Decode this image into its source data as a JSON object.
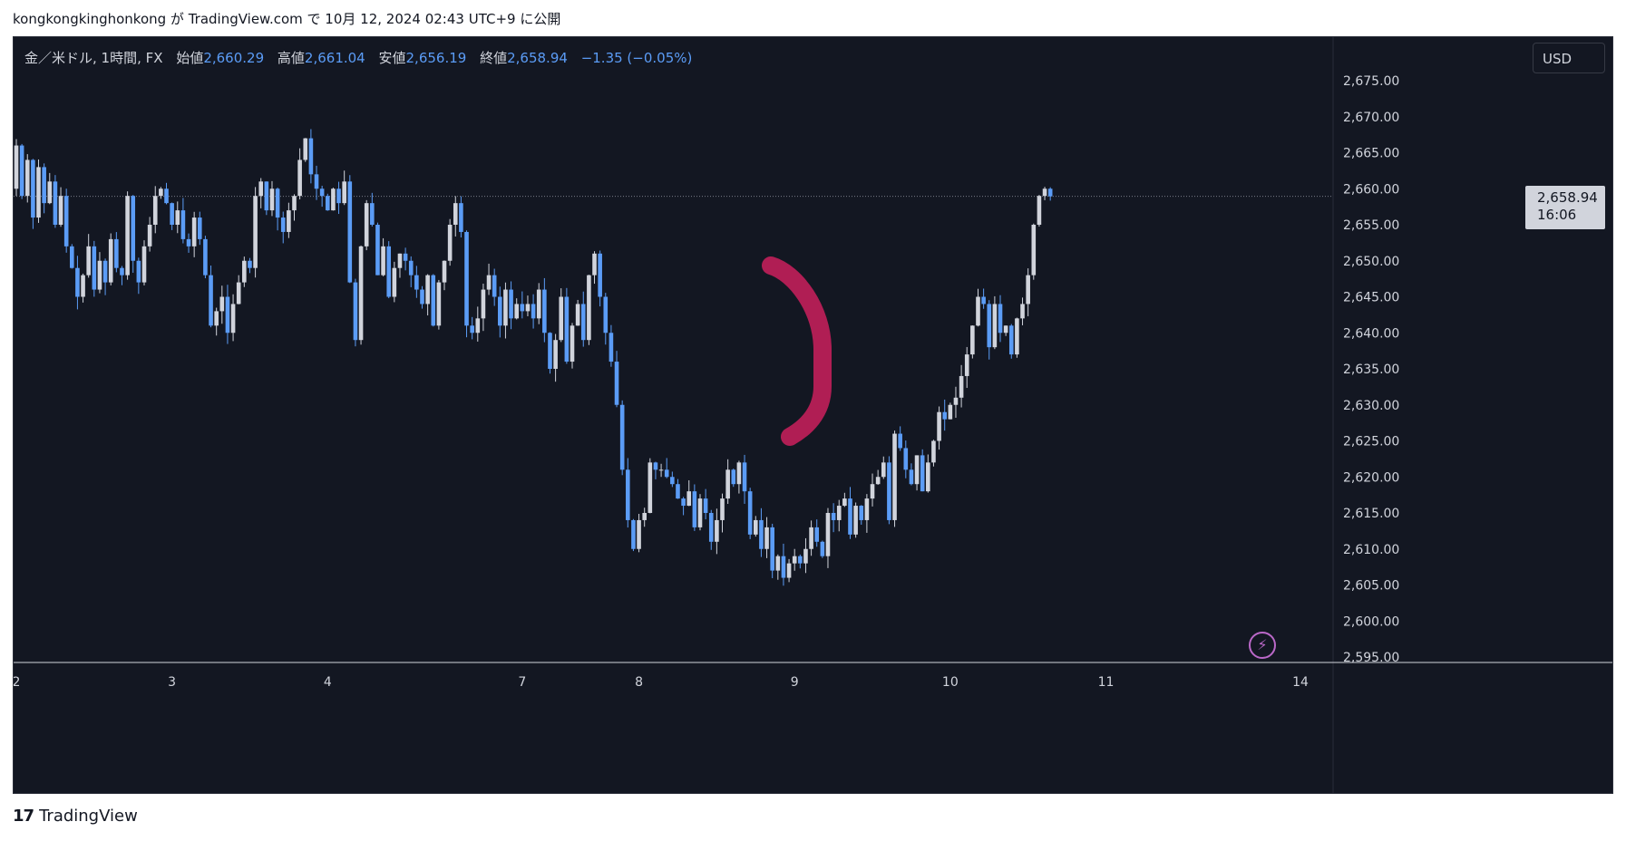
{
  "attribution": {
    "author": "kongkongkinghonkong",
    "middle": " が TradingView.com で ",
    "date": "10月 12, 2024 02:43 UTC+9",
    "suffix": " に公開"
  },
  "legend": {
    "symbol": "金／米ドル, 1時間, FX",
    "open_label": "始値",
    "open": "2,660.29",
    "high_label": "高値",
    "high": "2,661.04",
    "low_label": "安値",
    "low": "2,656.19",
    "close_label": "終値",
    "close": "2,658.94",
    "change": "−1.35 (−0.05%)"
  },
  "currency": "USD",
  "price_tag": {
    "price": "2,658.94",
    "countdown": "16:06"
  },
  "footer": {
    "logo_mark": "17",
    "brand": "TradingView"
  },
  "colors": {
    "background": "#131722",
    "up": "#d1d4dc",
    "down": "#5b9cf6",
    "annotation": "#b01e54",
    "current_price_line": "#787b86"
  },
  "chart_data": {
    "type": "candlestick",
    "title": "",
    "xlabel": "",
    "ylabel": "",
    "ylim": [
      2594,
      2674
    ],
    "current_price": 2658.94,
    "y_ticks": [
      2595,
      2600,
      2605,
      2610,
      2615,
      2620,
      2625,
      2630,
      2635,
      2640,
      2645,
      2650,
      2655,
      2660,
      2665,
      2670,
      2675
    ],
    "y_tick_labels": [
      "2,595.00",
      "2,600.00",
      "2,605.00",
      "2,610.00",
      "2,615.00",
      "2,620.00",
      "2,625.00",
      "2,630.00",
      "2,635.00",
      "2,640.00",
      "2,645.00",
      "2,650.00",
      "2,655.00",
      "2,660.00",
      "2,665.00",
      "2,670.00",
      "2,675.00"
    ],
    "x_ticks": [
      {
        "label": "2",
        "index": 0
      },
      {
        "label": "3",
        "index": 28
      },
      {
        "label": "4",
        "index": 56
      },
      {
        "label": "7",
        "index": 91
      },
      {
        "label": "8",
        "index": 112
      },
      {
        "label": "9",
        "index": 140
      },
      {
        "label": "10",
        "index": 168
      },
      {
        "label": "11",
        "index": 196
      },
      {
        "label": "14",
        "index": 231
      }
    ],
    "segments": [
      {
        "start": 2660,
        "closes": [
          2666,
          2659,
          2664,
          2656,
          2663,
          2658,
          2661,
          2655,
          2659,
          2652,
          2649,
          2645,
          2648,
          2652,
          2646,
          2650,
          2647,
          2653,
          2649,
          2648,
          2659,
          2650,
          2647,
          2652,
          2655,
          2659,
          2660,
          2658,
          2655,
          2657,
          2653,
          2652,
          2656,
          2653,
          2648,
          2641,
          2643,
          2645,
          2640,
          2644,
          2647,
          2650,
          2649,
          2659,
          2661,
          2657,
          2660,
          2656,
          2654,
          2657,
          2659,
          2664,
          2667,
          2662,
          2660,
          2659,
          2657,
          2660,
          2658,
          2661,
          2647,
          2639,
          2652,
          2658,
          2655,
          2648,
          2652,
          2645,
          2649,
          2651,
          2650,
          2648,
          2646,
          2644,
          2648,
          2641,
          2647,
          2650,
          2655,
          2658,
          2654,
          2641,
          2640,
          2642,
          2646,
          2648,
          2645,
          2641,
          2646,
          2642,
          2644
        ]
      },
      {
        "start": 2644,
        "closes": [
          2643,
          2644,
          2642,
          2646,
          2640,
          2635,
          2639,
          2645,
          2636,
          2641,
          2644,
          2639,
          2648,
          2651,
          2645,
          2640,
          2636,
          2630,
          2621,
          2614,
          2610,
          2614,
          2615,
          2622,
          2621,
          2621,
          2620,
          2619,
          2617,
          2616,
          2618,
          2613,
          2617,
          2615,
          2611,
          2614,
          2617,
          2621,
          2619,
          2622,
          2618,
          2612,
          2614,
          2610,
          2613,
          2607,
          2609,
          2606,
          2608,
          2609,
          2608,
          2610,
          2613,
          2611,
          2609,
          2615,
          2614,
          2616,
          2617,
          2612,
          2616,
          2614,
          2617,
          2619,
          2620,
          2622,
          2614,
          2626,
          2624,
          2621,
          2619,
          2623,
          2618,
          2622,
          2625,
          2629,
          2628,
          2630,
          2631,
          2634,
          2637,
          2641,
          2645,
          2644,
          2638,
          2644,
          2640,
          2641,
          2637,
          2642,
          2644,
          2648,
          2655,
          2659,
          2660,
          2658.94
        ]
      }
    ]
  }
}
